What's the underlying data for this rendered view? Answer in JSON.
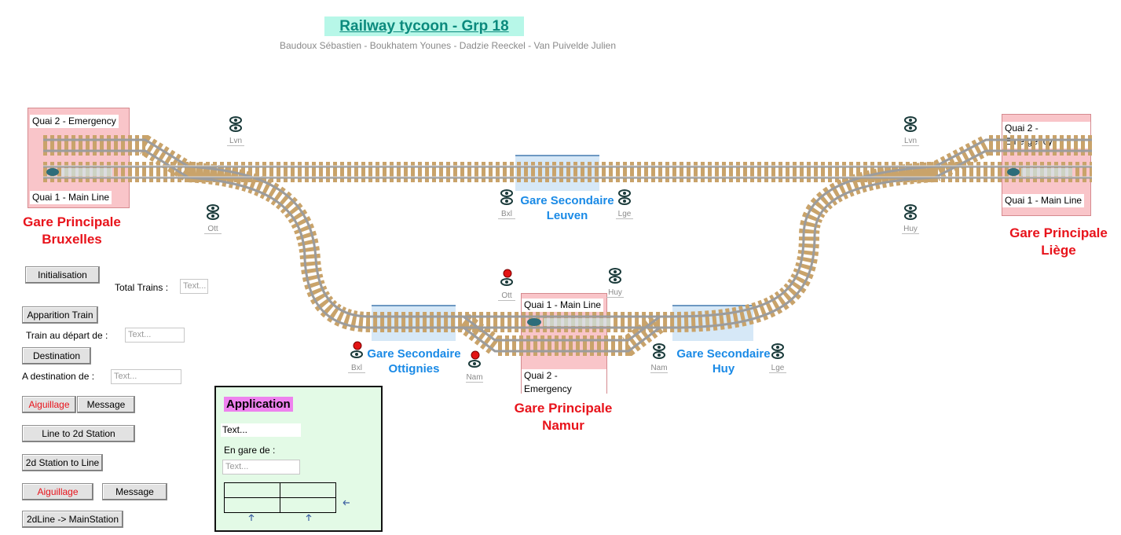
{
  "header": {
    "title": "Railway tycoon - Grp 18",
    "authors": "Baudoux Sébastien - Boukhatem  Younes - Dadzie Reeckel - Van Puivelde Julien"
  },
  "colors": {
    "track_rail": "#a0a0a0",
    "track_tie": "#c9a36a",
    "station_main": "#f9c5c9",
    "station_secondary": "#d6e8f7",
    "title_bg": "#b7f7e8",
    "red_label": "#e8131b",
    "blue_label": "#1a8ae6"
  },
  "stations": {
    "bruxelles": {
      "q2": "Quai 2 - Emergency",
      "q1": "Quai 1 - Main Line",
      "name1": "Gare Principale",
      "name2": "Bruxelles"
    },
    "liege": {
      "q2": "Quai 2 - Emergency",
      "q1": "Quai 1 - Main Line",
      "name1": "Gare Principale",
      "name2": "Liège"
    },
    "namur": {
      "q1": "Quai 1 - Main Line",
      "q2": "Quai 2 - Emergency",
      "name1": "Gare Principale",
      "name2": "Namur"
    },
    "leuven": {
      "name1": "Gare Secondaire",
      "name2": "Leuven"
    },
    "ottignies": {
      "name1": "Gare Secondaire",
      "name2": "Ottignies"
    },
    "huy": {
      "name1": "Gare Secondaire",
      "name2": "Huy"
    }
  },
  "signals": {
    "lvn_w": "Lvn",
    "ott_w": "Ott",
    "bxl_leu": "Bxl",
    "lge_leu": "Lge",
    "lvn_e": "Lvn",
    "huy_e": "Huy",
    "ott_nam": "Ott",
    "huy_nam": "Huy",
    "bxl_ott": "Bxl",
    "nam_ott": "Nam",
    "nam_huy": "Nam",
    "lge_huy": "Lge"
  },
  "controls": {
    "initialisation": "Initialisation",
    "total_trains": "Total Trains :",
    "total_trains_ph": "Text...",
    "apparition": "Apparition Train",
    "depart_label": "Train au départ de :",
    "depart_ph": "Text...",
    "destination": "Destination",
    "dest_label": "A destination de :",
    "dest_ph": "Text...",
    "aiguillage1": "Aiguillage",
    "message1": "Message",
    "line_to_2d": "Line to 2d Station",
    "station_to_line": "2d Station to Line",
    "aiguillage2": "Aiguillage",
    "message2": "Message",
    "line_to_main": "2dLine -> MainStation"
  },
  "app": {
    "title": "Application",
    "text": "Text...",
    "en_gare": "En gare de :",
    "en_gare_ph": "Text..."
  }
}
